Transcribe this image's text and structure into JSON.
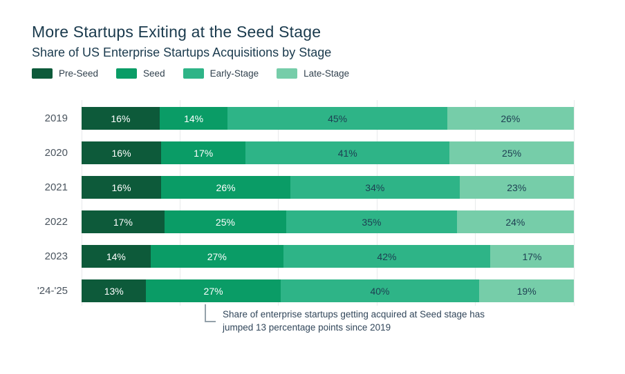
{
  "title": "More Startups Exiting at the Seed Stage",
  "subtitle": "Share of US Enterprise Startups Acquisitions by Stage",
  "legend": [
    {
      "label": "Pre-Seed",
      "color": "#0d5a3a"
    },
    {
      "label": "Seed",
      "color": "#0a9c66"
    },
    {
      "label": "Early-Stage",
      "color": "#2eb487"
    },
    {
      "label": "Late-Stage",
      "color": "#76cda9"
    }
  ],
  "chart_data": {
    "type": "bar",
    "stacked": true,
    "orientation": "horizontal",
    "categories": [
      "2019",
      "2020",
      "2021",
      "2022",
      "2023",
      "'24-'25"
    ],
    "series": [
      {
        "name": "Pre-Seed",
        "color": "#0d5a3a",
        "label_color": "#ffffff",
        "values": [
          16,
          16,
          16,
          17,
          14,
          13
        ]
      },
      {
        "name": "Seed",
        "color": "#0a9c66",
        "label_color": "#ffffff",
        "values": [
          14,
          17,
          26,
          25,
          27,
          27
        ]
      },
      {
        "name": "Early-Stage",
        "color": "#2eb487",
        "label_color": "#1d3e52",
        "values": [
          45,
          41,
          34,
          35,
          42,
          40
        ]
      },
      {
        "name": "Late-Stage",
        "color": "#76cda9",
        "label_color": "#1d3e52",
        "values": [
          26,
          25,
          23,
          24,
          17,
          19
        ]
      }
    ],
    "value_suffix": "%",
    "x_axis": {
      "min": 0,
      "max": 100,
      "gridline_percents": [
        0,
        20,
        40,
        60,
        80,
        100
      ],
      "tick_labels_visible": false
    },
    "legend_position": "top",
    "grid": "vertical",
    "gridline_color": "#e8eaeb"
  },
  "annotation": {
    "text": "Share of enterprise startups getting acquired at Seed stage has jumped 13 percentage points since 2019",
    "connector": "elbow-from-seed-segment-24-25"
  }
}
